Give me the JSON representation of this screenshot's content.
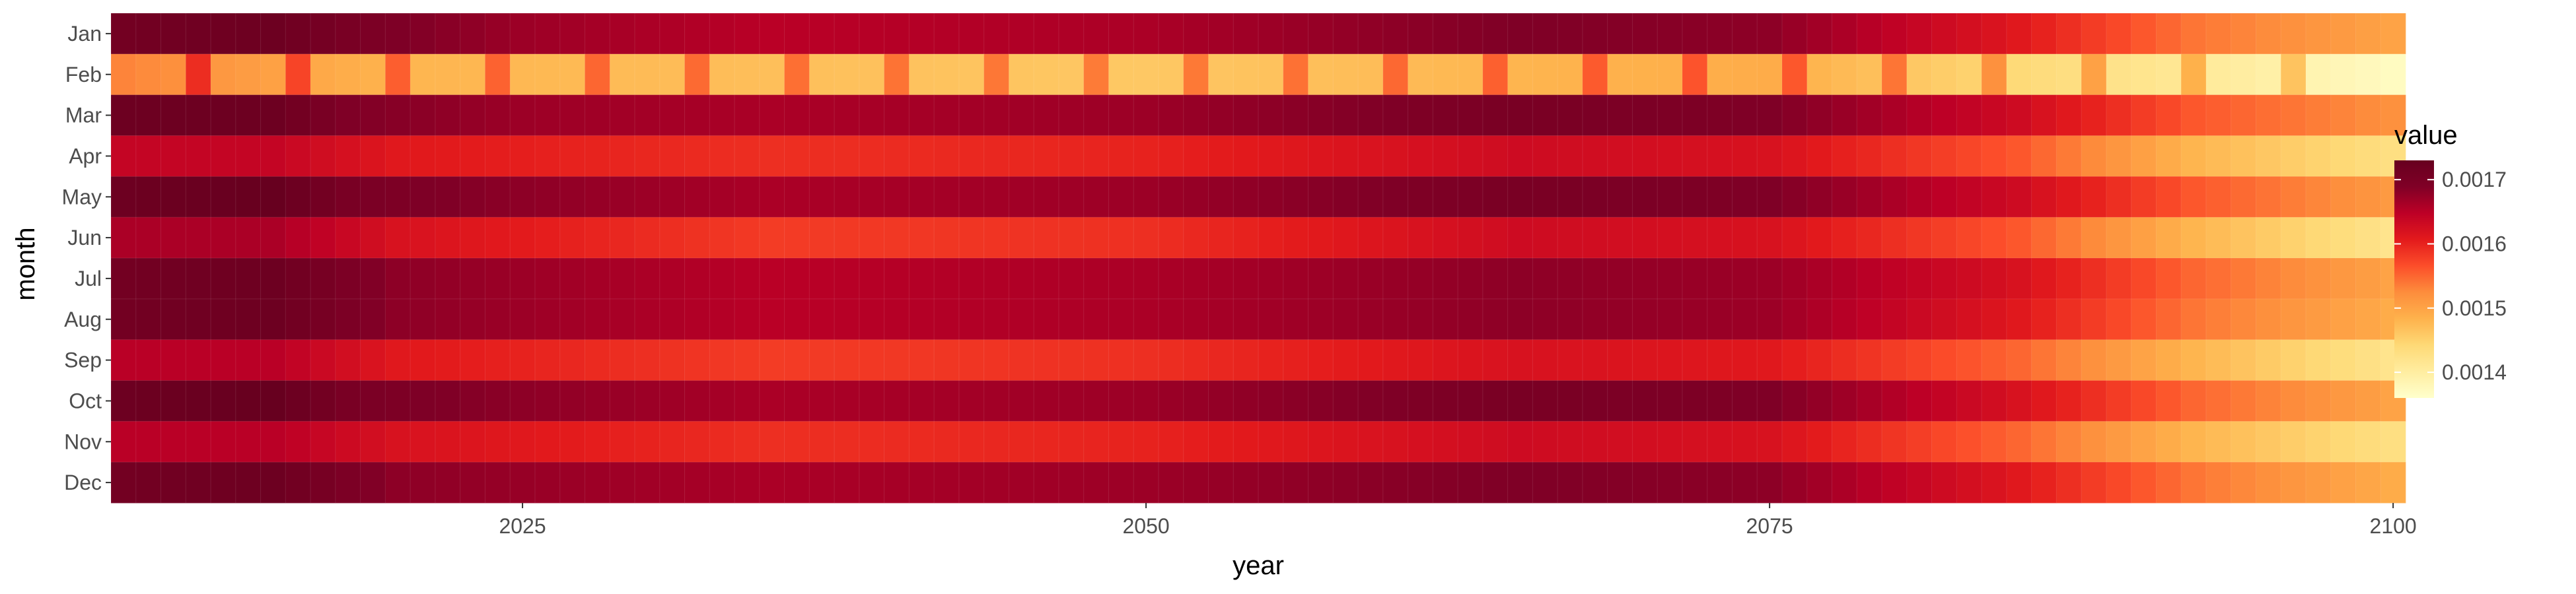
{
  "chart_data": {
    "type": "heatmap",
    "xlabel": "year",
    "ylabel": "month",
    "x_ticks": [
      "2025",
      "2050",
      "2075",
      "2100"
    ],
    "x_tick_values": [
      2025,
      2050,
      2075,
      2100
    ],
    "xlim": [
      2008.5,
      2100.5
    ],
    "months": [
      "Jan",
      "Feb",
      "Mar",
      "Apr",
      "May",
      "Jun",
      "Jul",
      "Aug",
      "Sep",
      "Oct",
      "Nov",
      "Dec"
    ],
    "years": [
      2009,
      2100
    ],
    "legend_title": "value",
    "legend_ticks": [
      "0.0014",
      "0.0015",
      "0.0016",
      "0.0017"
    ],
    "legend_tick_values": [
      0.0014,
      0.0015,
      0.0016,
      0.0017
    ],
    "value_range": [
      0.00136,
      0.00173
    ],
    "legend_placement": "right",
    "grid": true,
    "colorscale": [
      "#ffffcc",
      "#ffeda0",
      "#fed976",
      "#feb24c",
      "#fd8d3c",
      "#fc4e2a",
      "#e31a1c",
      "#bd0026",
      "#800026",
      "#67001f"
    ],
    "row_profiles": [
      [
        [
          2009,
          0.00171
        ],
        [
          2015,
          0.00172
        ],
        [
          2018,
          0.0017
        ],
        [
          2025,
          0.00167
        ],
        [
          2035,
          0.00165
        ],
        [
          2050,
          0.00166
        ],
        [
          2065,
          0.00169
        ],
        [
          2075,
          0.00168
        ],
        [
          2085,
          0.00161
        ],
        [
          2092,
          0.00154
        ],
        [
          2100,
          0.0015
        ]
      ],
      [
        [
          2009,
          0.00153
        ],
        [
          2020,
          0.00148
        ],
        [
          2035,
          0.00147
        ],
        [
          2050,
          0.00146
        ],
        [
          2065,
          0.00148
        ],
        [
          2075,
          0.00149
        ],
        [
          2085,
          0.00144
        ],
        [
          2092,
          0.00141
        ],
        [
          2100,
          0.00137
        ]
      ],
      [
        [
          2009,
          0.00172
        ],
        [
          2015,
          0.00172
        ],
        [
          2018,
          0.00169
        ],
        [
          2025,
          0.00167
        ],
        [
          2035,
          0.00166
        ],
        [
          2050,
          0.00167
        ],
        [
          2065,
          0.0017
        ],
        [
          2075,
          0.00169
        ],
        [
          2085,
          0.00163
        ],
        [
          2092,
          0.00156
        ],
        [
          2100,
          0.00152
        ]
      ],
      [
        [
          2009,
          0.00164
        ],
        [
          2015,
          0.00164
        ],
        [
          2020,
          0.00161
        ],
        [
          2035,
          0.00159
        ],
        [
          2050,
          0.0016
        ],
        [
          2065,
          0.00163
        ],
        [
          2075,
          0.00162
        ],
        [
          2085,
          0.00156
        ],
        [
          2092,
          0.00148
        ],
        [
          2100,
          0.00143
        ]
      ],
      [
        [
          2009,
          0.00172
        ],
        [
          2015,
          0.00173
        ],
        [
          2018,
          0.0017
        ],
        [
          2025,
          0.00168
        ],
        [
          2035,
          0.00166
        ],
        [
          2050,
          0.00167
        ],
        [
          2065,
          0.0017
        ],
        [
          2075,
          0.00169
        ],
        [
          2085,
          0.00163
        ],
        [
          2092,
          0.00156
        ],
        [
          2100,
          0.00151
        ]
      ],
      [
        [
          2009,
          0.00166
        ],
        [
          2015,
          0.00166
        ],
        [
          2020,
          0.00162
        ],
        [
          2035,
          0.00158
        ],
        [
          2050,
          0.00159
        ],
        [
          2065,
          0.00163
        ],
        [
          2075,
          0.00162
        ],
        [
          2085,
          0.00156
        ],
        [
          2092,
          0.00148
        ],
        [
          2100,
          0.00142
        ]
      ],
      [
        [
          2009,
          0.00171
        ],
        [
          2015,
          0.00172
        ],
        [
          2020,
          0.00168
        ],
        [
          2035,
          0.00165
        ],
        [
          2050,
          0.00166
        ],
        [
          2065,
          0.00168
        ],
        [
          2075,
          0.00167
        ],
        [
          2085,
          0.00162
        ],
        [
          2092,
          0.00155
        ],
        [
          2100,
          0.0015
        ]
      ],
      [
        [
          2009,
          0.00171
        ],
        [
          2015,
          0.00172
        ],
        [
          2020,
          0.00168
        ],
        [
          2035,
          0.00165
        ],
        [
          2050,
          0.00166
        ],
        [
          2065,
          0.00168
        ],
        [
          2075,
          0.00167
        ],
        [
          2085,
          0.00161
        ],
        [
          2092,
          0.00154
        ],
        [
          2100,
          0.00149
        ]
      ],
      [
        [
          2009,
          0.00165
        ],
        [
          2015,
          0.00165
        ],
        [
          2020,
          0.00161
        ],
        [
          2035,
          0.00158
        ],
        [
          2050,
          0.00159
        ],
        [
          2065,
          0.00162
        ],
        [
          2075,
          0.00161
        ],
        [
          2085,
          0.00155
        ],
        [
          2092,
          0.00148
        ],
        [
          2100,
          0.00142
        ]
      ],
      [
        [
          2009,
          0.00172
        ],
        [
          2015,
          0.00173
        ],
        [
          2018,
          0.0017
        ],
        [
          2025,
          0.00168
        ],
        [
          2035,
          0.00166
        ],
        [
          2050,
          0.00167
        ],
        [
          2065,
          0.0017
        ],
        [
          2075,
          0.00169
        ],
        [
          2085,
          0.00162
        ],
        [
          2092,
          0.00155
        ],
        [
          2100,
          0.0015
        ]
      ],
      [
        [
          2009,
          0.00165
        ],
        [
          2015,
          0.00165
        ],
        [
          2020,
          0.00162
        ],
        [
          2035,
          0.00159
        ],
        [
          2050,
          0.0016
        ],
        [
          2065,
          0.00163
        ],
        [
          2075,
          0.00162
        ],
        [
          2085,
          0.00155
        ],
        [
          2092,
          0.00148
        ],
        [
          2100,
          0.00143
        ]
      ],
      [
        [
          2009,
          0.00171
        ],
        [
          2015,
          0.00172
        ],
        [
          2020,
          0.00168
        ],
        [
          2035,
          0.00166
        ],
        [
          2050,
          0.00167
        ],
        [
          2065,
          0.00169
        ],
        [
          2075,
          0.00168
        ],
        [
          2085,
          0.00161
        ],
        [
          2092,
          0.00154
        ],
        [
          2100,
          0.00149
        ]
      ]
    ],
    "feb_leap_years": [
      2012,
      2016,
      2020,
      2024,
      2028,
      2032,
      2036,
      2040,
      2044,
      2048,
      2052,
      2056,
      2060,
      2064,
      2068,
      2072,
      2076,
      2080,
      2084,
      2088,
      2092,
      2096
    ],
    "feb_leap_delta": 7.5e-05
  }
}
